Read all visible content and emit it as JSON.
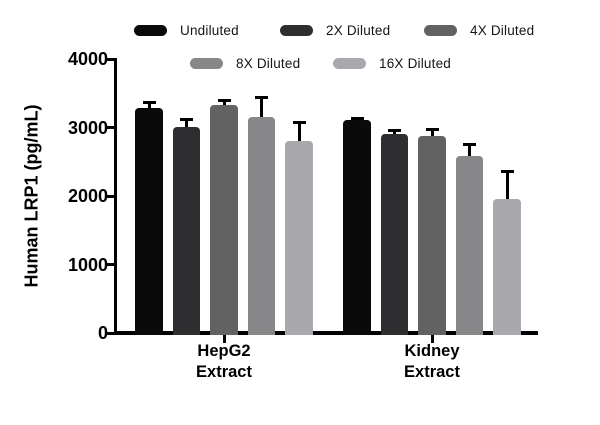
{
  "chart_data": {
    "type": "bar",
    "title": "",
    "ylabel": "Human LRP1 (pg/mL)",
    "xlabel": "",
    "ylim": [
      0,
      4000
    ],
    "yticks": [
      0,
      1000,
      2000,
      3000,
      4000
    ],
    "grid": false,
    "legend_position": "top",
    "categories": [
      "HepG2 Extract",
      "Kidney Extract"
    ],
    "categories_lines": [
      [
        "HepG2",
        "Extract"
      ],
      [
        "Kidney",
        "Extract"
      ]
    ],
    "series": [
      {
        "name": "Undiluted",
        "color": "#0a0a0a",
        "values": [
          3280,
          3110
        ],
        "errors": [
          100,
          45
        ]
      },
      {
        "name": "2X Diluted",
        "color": "#2e2e30",
        "values": [
          3010,
          2900
        ],
        "errors": [
          135,
          80
        ]
      },
      {
        "name": "4X Diluted",
        "color": "#626265",
        "values": [
          3325,
          2870
        ],
        "errors": [
          90,
          120
        ]
      },
      {
        "name": "8X Diluted",
        "color": "#87878a",
        "values": [
          3150,
          2590
        ],
        "errors": [
          310,
          185
        ]
      },
      {
        "name": "16X Diluted",
        "color": "#a9a9ad",
        "values": [
          2800,
          1960
        ],
        "errors": [
          290,
          425
        ]
      }
    ],
    "error_bar_color": "#000000",
    "axis_color": "#000000",
    "background": "#ffffff"
  }
}
